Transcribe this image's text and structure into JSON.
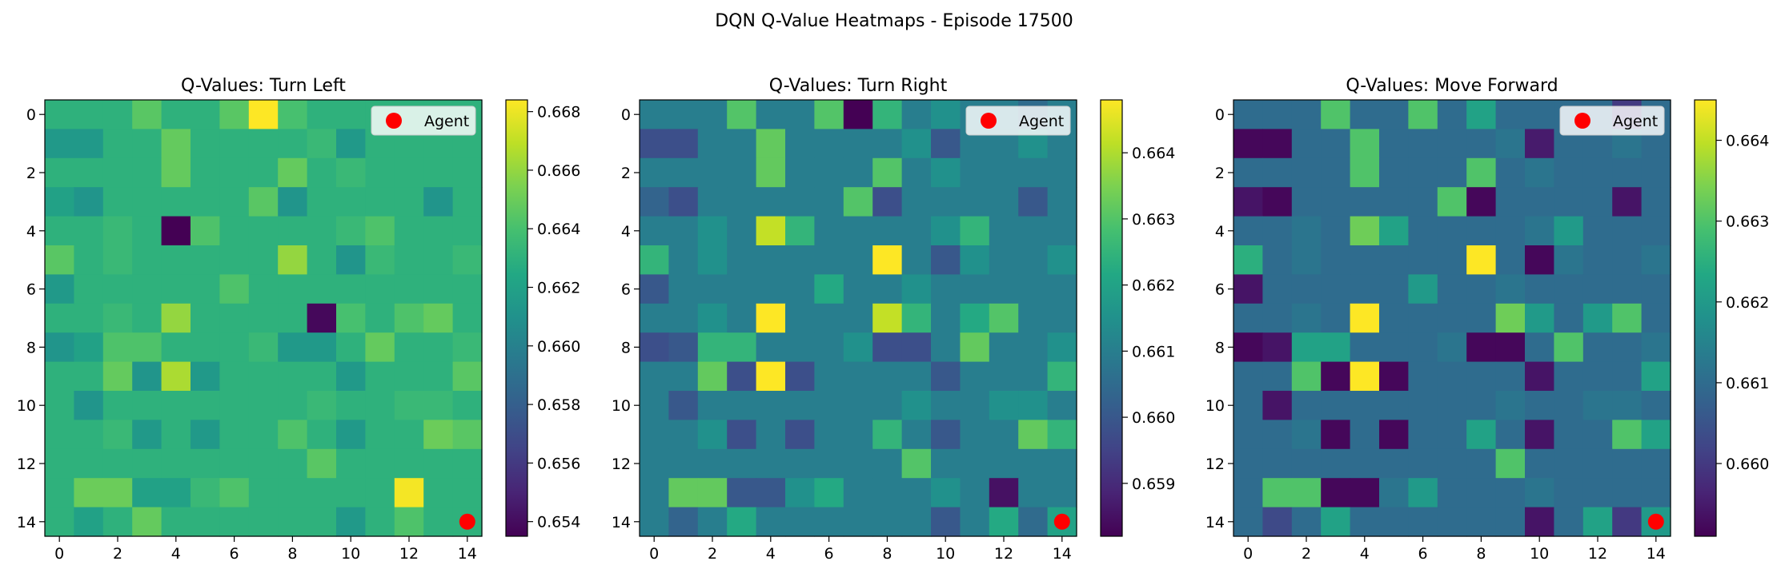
{
  "suptitle": "DQN Q-Value Heatmaps - Episode 17500",
  "legend_label": "Agent",
  "agent_color": "#ff0000",
  "colormap": "viridis",
  "chart_data": [
    {
      "type": "heatmap",
      "title": "Q-Values: Turn Left",
      "grid_size": 15,
      "xticks": [
        0,
        2,
        4,
        6,
        8,
        10,
        12,
        14
      ],
      "yticks": [
        0,
        2,
        4,
        6,
        8,
        10,
        12,
        14
      ],
      "vmin": 0.6535,
      "vmax": 0.6684,
      "colorbar_ticks": [
        "0.654",
        "0.656",
        "0.658",
        "0.660",
        "0.662",
        "0.664",
        "0.666",
        "0.668"
      ],
      "colorbar_tick_values": [
        0.654,
        0.656,
        0.658,
        0.66,
        0.662,
        0.664,
        0.666,
        0.668
      ],
      "agent": [
        14,
        14
      ],
      "legend_position": "upper right",
      "values": [
        [
          0.663,
          0.663,
          0.663,
          0.6645,
          0.663,
          0.663,
          0.6645,
          0.6684,
          0.664,
          0.663,
          0.663,
          0.663,
          0.663,
          0.663,
          0.663
        ],
        [
          0.6615,
          0.6615,
          0.663,
          0.663,
          0.6648,
          0.663,
          0.663,
          0.663,
          0.663,
          0.6635,
          0.6615,
          0.663,
          0.663,
          0.663,
          0.663
        ],
        [
          0.663,
          0.663,
          0.663,
          0.663,
          0.6648,
          0.663,
          0.663,
          0.663,
          0.6648,
          0.663,
          0.6635,
          0.663,
          0.663,
          0.663,
          0.663
        ],
        [
          0.662,
          0.6612,
          0.663,
          0.663,
          0.663,
          0.663,
          0.663,
          0.6645,
          0.6612,
          0.663,
          0.663,
          0.663,
          0.663,
          0.6612,
          0.663
        ],
        [
          0.663,
          0.663,
          0.6635,
          0.663,
          0.6535,
          0.6642,
          0.663,
          0.663,
          0.663,
          0.663,
          0.6635,
          0.6642,
          0.663,
          0.663,
          0.663
        ],
        [
          0.6645,
          0.663,
          0.6635,
          0.663,
          0.663,
          0.663,
          0.663,
          0.663,
          0.666,
          0.663,
          0.6612,
          0.6635,
          0.663,
          0.663,
          0.6635
        ],
        [
          0.6615,
          0.663,
          0.663,
          0.663,
          0.663,
          0.663,
          0.6642,
          0.663,
          0.663,
          0.663,
          0.663,
          0.663,
          0.663,
          0.663,
          0.663
        ],
        [
          0.663,
          0.663,
          0.6635,
          0.663,
          0.666,
          0.663,
          0.663,
          0.663,
          0.663,
          0.6538,
          0.664,
          0.663,
          0.6642,
          0.6648,
          0.663
        ],
        [
          0.6612,
          0.662,
          0.6642,
          0.6642,
          0.663,
          0.663,
          0.663,
          0.6635,
          0.6615,
          0.6615,
          0.663,
          0.6648,
          0.663,
          0.663,
          0.6635
        ],
        [
          0.663,
          0.663,
          0.6648,
          0.6612,
          0.6665,
          0.6615,
          0.663,
          0.663,
          0.663,
          0.663,
          0.6615,
          0.663,
          0.663,
          0.663,
          0.6645
        ],
        [
          0.663,
          0.6612,
          0.663,
          0.663,
          0.663,
          0.663,
          0.663,
          0.663,
          0.663,
          0.6635,
          0.663,
          0.663,
          0.6635,
          0.6635,
          0.663
        ],
        [
          0.663,
          0.663,
          0.6635,
          0.6615,
          0.663,
          0.6615,
          0.663,
          0.663,
          0.6642,
          0.663,
          0.6615,
          0.663,
          0.663,
          0.665,
          0.6645
        ],
        [
          0.663,
          0.663,
          0.663,
          0.663,
          0.663,
          0.663,
          0.663,
          0.663,
          0.663,
          0.6645,
          0.663,
          0.663,
          0.663,
          0.663,
          0.663
        ],
        [
          0.663,
          0.665,
          0.665,
          0.662,
          0.662,
          0.6635,
          0.6642,
          0.663,
          0.663,
          0.663,
          0.663,
          0.663,
          0.6682,
          0.663,
          0.663
        ],
        [
          0.663,
          0.662,
          0.663,
          0.6648,
          0.663,
          0.663,
          0.663,
          0.663,
          0.663,
          0.663,
          0.6615,
          0.663,
          0.6642,
          0.663,
          0.663
        ]
      ]
    },
    {
      "type": "heatmap",
      "title": "Q-Values: Turn Right",
      "grid_size": 15,
      "xticks": [
        0,
        2,
        4,
        6,
        8,
        10,
        12,
        14
      ],
      "yticks": [
        0,
        2,
        4,
        6,
        8,
        10,
        12,
        14
      ],
      "vmin": 0.6582,
      "vmax": 0.6648,
      "colorbar_ticks": [
        "0.659",
        "0.660",
        "0.661",
        "0.662",
        "0.663",
        "0.664"
      ],
      "colorbar_tick_values": [
        0.659,
        0.66,
        0.661,
        0.662,
        0.663,
        0.664
      ],
      "agent": [
        14,
        14
      ],
      "legend_position": "upper right",
      "values": [
        [
          0.661,
          0.661,
          0.661,
          0.663,
          0.661,
          0.661,
          0.663,
          0.6582,
          0.6625,
          0.661,
          0.6615,
          0.661,
          0.661,
          0.6605,
          0.661
        ],
        [
          0.6598,
          0.6598,
          0.661,
          0.661,
          0.6632,
          0.661,
          0.661,
          0.661,
          0.661,
          0.6615,
          0.66,
          0.661,
          0.661,
          0.6615,
          0.661
        ],
        [
          0.661,
          0.661,
          0.661,
          0.661,
          0.6632,
          0.661,
          0.661,
          0.661,
          0.663,
          0.661,
          0.6615,
          0.661,
          0.661,
          0.661,
          0.661
        ],
        [
          0.6603,
          0.6598,
          0.661,
          0.661,
          0.661,
          0.661,
          0.661,
          0.663,
          0.6598,
          0.661,
          0.661,
          0.661,
          0.661,
          0.66,
          0.661
        ],
        [
          0.661,
          0.661,
          0.6615,
          0.661,
          0.6642,
          0.6625,
          0.661,
          0.661,
          0.661,
          0.661,
          0.6615,
          0.6625,
          0.661,
          0.661,
          0.661
        ],
        [
          0.6625,
          0.661,
          0.6615,
          0.661,
          0.661,
          0.661,
          0.661,
          0.661,
          0.6648,
          0.661,
          0.66,
          0.6615,
          0.661,
          0.661,
          0.6615
        ],
        [
          0.66,
          0.661,
          0.661,
          0.661,
          0.661,
          0.661,
          0.6622,
          0.661,
          0.661,
          0.6615,
          0.661,
          0.661,
          0.661,
          0.661,
          0.661
        ],
        [
          0.661,
          0.661,
          0.6615,
          0.661,
          0.6648,
          0.661,
          0.661,
          0.661,
          0.6642,
          0.6625,
          0.661,
          0.6622,
          0.663,
          0.661,
          0.661
        ],
        [
          0.6598,
          0.66,
          0.6625,
          0.6625,
          0.661,
          0.661,
          0.661,
          0.6615,
          0.6598,
          0.6598,
          0.661,
          0.6632,
          0.661,
          0.661,
          0.6615
        ],
        [
          0.661,
          0.661,
          0.6632,
          0.6598,
          0.6648,
          0.6598,
          0.661,
          0.661,
          0.661,
          0.661,
          0.66,
          0.661,
          0.661,
          0.661,
          0.6625
        ],
        [
          0.661,
          0.66,
          0.661,
          0.661,
          0.661,
          0.661,
          0.661,
          0.661,
          0.661,
          0.6615,
          0.661,
          0.661,
          0.6615,
          0.6615,
          0.661
        ],
        [
          0.661,
          0.661,
          0.6615,
          0.6598,
          0.661,
          0.6598,
          0.661,
          0.661,
          0.6625,
          0.661,
          0.66,
          0.661,
          0.661,
          0.6632,
          0.6625
        ],
        [
          0.661,
          0.661,
          0.661,
          0.661,
          0.661,
          0.661,
          0.661,
          0.661,
          0.661,
          0.663,
          0.661,
          0.661,
          0.661,
          0.661,
          0.661
        ],
        [
          0.661,
          0.6632,
          0.6632,
          0.66,
          0.66,
          0.6615,
          0.6622,
          0.661,
          0.661,
          0.661,
          0.6615,
          0.661,
          0.6585,
          0.661,
          0.661
        ],
        [
          0.661,
          0.6603,
          0.661,
          0.6622,
          0.661,
          0.661,
          0.661,
          0.661,
          0.661,
          0.661,
          0.66,
          0.661,
          0.6622,
          0.6605,
          0.662
        ]
      ]
    },
    {
      "type": "heatmap",
      "title": "Q-Values: Move Forward",
      "grid_size": 15,
      "xticks": [
        0,
        2,
        4,
        6,
        8,
        10,
        12,
        14
      ],
      "yticks": [
        0,
        2,
        4,
        6,
        8,
        10,
        12,
        14
      ],
      "vmin": 0.6591,
      "vmax": 0.6645,
      "colorbar_ticks": [
        "0.660",
        "0.661",
        "0.662",
        "0.663",
        "0.664"
      ],
      "colorbar_tick_values": [
        0.66,
        0.661,
        0.662,
        0.663,
        0.664
      ],
      "agent": [
        14,
        14
      ],
      "legend_position": "upper right",
      "values": [
        [
          0.661,
          0.661,
          0.661,
          0.663,
          0.661,
          0.661,
          0.663,
          0.661,
          0.6622,
          0.661,
          0.661,
          0.661,
          0.661,
          0.66,
          0.661
        ],
        [
          0.6592,
          0.6592,
          0.661,
          0.661,
          0.663,
          0.661,
          0.661,
          0.661,
          0.661,
          0.6612,
          0.6595,
          0.661,
          0.661,
          0.6612,
          0.661
        ],
        [
          0.661,
          0.661,
          0.661,
          0.661,
          0.663,
          0.661,
          0.661,
          0.661,
          0.663,
          0.661,
          0.6612,
          0.661,
          0.661,
          0.661,
          0.661
        ],
        [
          0.6594,
          0.6592,
          0.661,
          0.661,
          0.661,
          0.661,
          0.661,
          0.663,
          0.6592,
          0.661,
          0.661,
          0.661,
          0.661,
          0.6594,
          0.661
        ],
        [
          0.661,
          0.661,
          0.6612,
          0.661,
          0.6633,
          0.6622,
          0.661,
          0.661,
          0.661,
          0.661,
          0.6612,
          0.662,
          0.661,
          0.661,
          0.661
        ],
        [
          0.6625,
          0.661,
          0.6612,
          0.661,
          0.661,
          0.661,
          0.661,
          0.661,
          0.6645,
          0.661,
          0.6592,
          0.6612,
          0.661,
          0.661,
          0.6612
        ],
        [
          0.6594,
          0.661,
          0.661,
          0.661,
          0.661,
          0.661,
          0.662,
          0.661,
          0.661,
          0.6612,
          0.661,
          0.661,
          0.661,
          0.661,
          0.661
        ],
        [
          0.661,
          0.661,
          0.6612,
          0.661,
          0.6645,
          0.661,
          0.661,
          0.661,
          0.661,
          0.6633,
          0.662,
          0.661,
          0.662,
          0.663,
          0.661
        ],
        [
          0.6592,
          0.6594,
          0.6622,
          0.6622,
          0.661,
          0.661,
          0.661,
          0.6612,
          0.6592,
          0.6592,
          0.661,
          0.663,
          0.661,
          0.661,
          0.6612
        ],
        [
          0.661,
          0.661,
          0.663,
          0.6592,
          0.6645,
          0.6592,
          0.661,
          0.661,
          0.661,
          0.661,
          0.6594,
          0.661,
          0.661,
          0.661,
          0.6622
        ],
        [
          0.661,
          0.6594,
          0.661,
          0.661,
          0.661,
          0.661,
          0.661,
          0.661,
          0.661,
          0.6612,
          0.661,
          0.661,
          0.6612,
          0.6612,
          0.661
        ],
        [
          0.661,
          0.661,
          0.6612,
          0.6592,
          0.661,
          0.6592,
          0.661,
          0.661,
          0.6622,
          0.661,
          0.6594,
          0.661,
          0.661,
          0.663,
          0.6622
        ],
        [
          0.661,
          0.661,
          0.661,
          0.661,
          0.661,
          0.661,
          0.661,
          0.661,
          0.661,
          0.663,
          0.661,
          0.661,
          0.661,
          0.661,
          0.661
        ],
        [
          0.661,
          0.663,
          0.663,
          0.6592,
          0.6592,
          0.6612,
          0.662,
          0.661,
          0.661,
          0.661,
          0.6612,
          0.661,
          0.661,
          0.661,
          0.661
        ],
        [
          0.661,
          0.6603,
          0.661,
          0.6622,
          0.661,
          0.661,
          0.661,
          0.661,
          0.661,
          0.661,
          0.6594,
          0.661,
          0.6622,
          0.66,
          0.662
        ]
      ]
    }
  ]
}
